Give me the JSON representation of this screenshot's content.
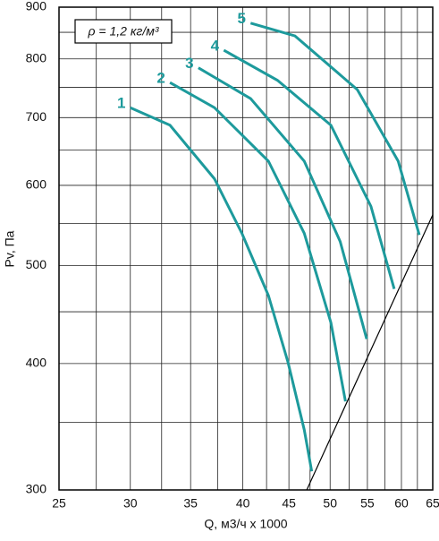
{
  "chart_data": {
    "type": "line",
    "annotation": "ρ = 1,2 кг/м³",
    "x_label": "Q, м3/ч x 1000",
    "y_label": "Pv, Па",
    "x_log": true,
    "y_log": true,
    "grid": true,
    "xlim": [
      25,
      65
    ],
    "xticks": [
      25,
      30,
      35,
      40,
      45,
      50,
      55,
      60,
      65
    ],
    "x_minor_grid": [
      27.5,
      32.5,
      37.5,
      42.5,
      47.5,
      52.5,
      57.5,
      62.5
    ],
    "ylim": [
      300,
      900
    ],
    "yticks": [
      300,
      400,
      500,
      600,
      700,
      800,
      900
    ],
    "y_minor_grid": [
      350,
      450,
      550,
      650,
      750,
      850
    ],
    "series": [
      {
        "name": "1",
        "color": "#1d9a9c",
        "x": [
          30.0,
          33.2,
          37.2,
          39.9,
          42.7,
          44.9,
          46.8,
          47.7
        ],
        "values": [
          716,
          688,
          609,
          538,
          467,
          401,
          344,
          313
        ]
      },
      {
        "name": "2",
        "color": "#1d9a9c",
        "x": [
          33.2,
          37.2,
          42.7,
          46.8,
          50.1,
          52.0
        ],
        "values": [
          758,
          716,
          634,
          538,
          439,
          367
        ]
      },
      {
        "name": "3",
        "color": "#1d9a9c",
        "x": [
          35.7,
          40.8,
          46.8,
          51.3,
          54.9
        ],
        "values": [
          784,
          731,
          634,
          528,
          423
        ]
      },
      {
        "name": "4",
        "color": "#1d9a9c",
        "x": [
          38.1,
          43.7,
          50.1,
          55.5,
          58.9
        ],
        "values": [
          816,
          762,
          688,
          572,
          474
        ]
      },
      {
        "name": "5",
        "color": "#1d9a9c",
        "x": [
          40.8,
          45.7,
          53.6,
          59.5,
          62.8
        ],
        "values": [
          868,
          843,
          746,
          634,
          536
        ]
      },
      {
        "color": "#000000",
        "x": [
          47.1,
          65
        ],
        "values": [
          300,
          561
        ]
      }
    ]
  }
}
